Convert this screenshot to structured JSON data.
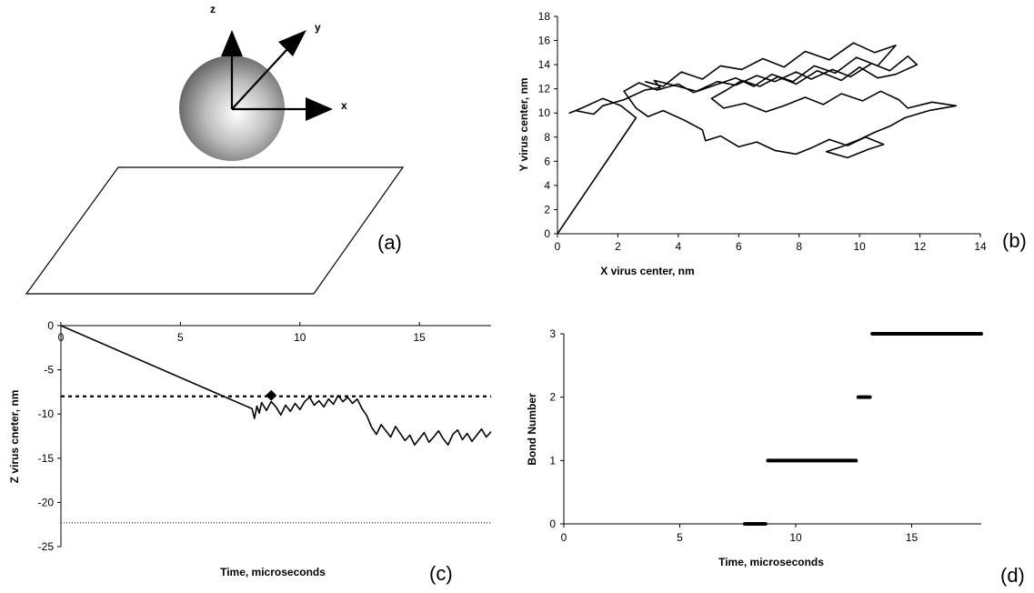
{
  "panel_labels": {
    "a": "(a)",
    "b": "(b)",
    "c": "(c)",
    "d": "(d)"
  },
  "schematic": {
    "axis_z": "z",
    "axis_y": "y",
    "axis_x": "x"
  },
  "chart_data": [
    {
      "panel": "b",
      "type": "line",
      "xlabel": "X virus center, nm",
      "ylabel": "Y virus center, nm",
      "xlim": [
        0,
        14
      ],
      "ylim": [
        0,
        18
      ],
      "xticks": [
        "0",
        "2",
        "4",
        "6",
        "8",
        "10",
        "12",
        "14"
      ],
      "yticks": [
        "0",
        "2",
        "4",
        "6",
        "8",
        "10",
        "12",
        "14",
        "16",
        "18"
      ],
      "grid": false,
      "series": [
        {
          "x": [
            0,
            2.6,
            2.1,
            1.5,
            0.8,
            0.4,
            0.6,
            1.2,
            1.5,
            2.2,
            2.9,
            3.4,
            3.2,
            4.0,
            4.6,
            5.3,
            5.9,
            6.6,
            7.2,
            7.9,
            8.4,
            9.1,
            9.7,
            10.4,
            11.0,
            11.6,
            11.9,
            11.2,
            10.6,
            10.0,
            9.4,
            8.6,
            7.9,
            7.3,
            6.7,
            6.1,
            5.6,
            5.1,
            5.5,
            6.2,
            6.9,
            7.5,
            8.2,
            8.8,
            9.4,
            10.1,
            10.7,
            11.3,
            11.6,
            12.4,
            13.2,
            12.3,
            11.5,
            11.0,
            10.5,
            10.0,
            9.4,
            8.9,
            9.6,
            10.3,
            10.8,
            10.2,
            9.6,
            9.0,
            8.4,
            7.9,
            7.2,
            6.6,
            6.0,
            5.4,
            4.9,
            4.8,
            4.2,
            3.5,
            3.0,
            2.6,
            2.2,
            2.7,
            3.3,
            4.0,
            4.5,
            5.2,
            5.9,
            6.5,
            7.1,
            7.8,
            8.5,
            9.2,
            9.9,
            10.6,
            11.2,
            10.5,
            9.8,
            9.0,
            8.2,
            7.5,
            6.8,
            6.1,
            5.4,
            4.8,
            4.1,
            3.5,
            2.9
          ],
          "y": [
            0,
            9.6,
            10.6,
            11.2,
            10.4,
            10.0,
            10.2,
            9.9,
            10.6,
            11.1,
            11.9,
            12.1,
            12.7,
            12.2,
            11.8,
            12.6,
            12.3,
            13.1,
            12.6,
            13.4,
            12.8,
            13.6,
            13.0,
            14.1,
            13.5,
            14.7,
            14.0,
            13.2,
            12.9,
            13.8,
            12.7,
            13.5,
            12.4,
            13.0,
            12.2,
            12.7,
            11.9,
            11.2,
            10.4,
            10.8,
            10.1,
            10.6,
            11.3,
            10.7,
            11.6,
            11.0,
            11.8,
            11.1,
            10.4,
            10.9,
            10.6,
            10.2,
            9.6,
            8.9,
            8.4,
            7.8,
            7.2,
            6.8,
            6.3,
            7.0,
            7.4,
            8.0,
            7.3,
            7.8,
            7.1,
            6.6,
            6.9,
            7.6,
            7.2,
            8.1,
            7.7,
            8.6,
            9.4,
            10.2,
            9.7,
            10.4,
            11.8,
            12.5,
            11.9,
            12.4,
            11.7,
            12.3,
            12.9,
            12.2,
            13.2,
            12.6,
            13.9,
            13.3,
            14.6,
            13.9,
            15.6,
            15.0,
            15.8,
            14.4,
            15.1,
            13.8,
            14.5,
            13.6,
            13.9,
            12.8,
            13.4,
            12.2,
            12.6
          ]
        }
      ]
    },
    {
      "panel": "c",
      "type": "line",
      "xlabel": "Time, microseconds",
      "ylabel": "Z virus cneter, nm",
      "xlim": [
        0,
        18
      ],
      "ylim": [
        -25,
        0
      ],
      "xticks": [
        "0",
        "5",
        "10",
        "15"
      ],
      "yticks": [
        "0",
        "-5",
        "-10",
        "-15",
        "-20",
        "-25"
      ],
      "grid": false,
      "reference_lines": [
        {
          "y": -8,
          "style": "dashed"
        },
        {
          "y": -22.3,
          "style": "dotted"
        }
      ],
      "marker": {
        "x": 8.8,
        "y": -7.9,
        "shape": "diamond"
      },
      "series": [
        {
          "x": [
            0,
            8.0,
            8.1,
            8.2,
            8.3,
            8.4,
            8.6,
            8.8,
            9.0,
            9.2,
            9.4,
            9.6,
            9.8,
            10.0,
            10.2,
            10.4,
            10.6,
            10.8,
            11.0,
            11.2,
            11.4,
            11.6,
            11.8,
            12.0,
            12.2,
            12.4,
            12.6,
            12.8,
            13.0,
            13.2,
            13.4,
            13.6,
            13.8,
            14.0,
            14.2,
            14.4,
            14.6,
            14.8,
            15.0,
            15.2,
            15.4,
            15.6,
            15.8,
            16.0,
            16.2,
            16.4,
            16.6,
            16.8,
            17.0,
            17.2,
            17.4,
            17.6,
            17.8,
            18.0
          ],
          "y": [
            0,
            -9.4,
            -10.5,
            -9.1,
            -9.9,
            -8.7,
            -9.6,
            -8.6,
            -9.2,
            -10.1,
            -9.0,
            -9.7,
            -8.8,
            -9.5,
            -8.6,
            -8.1,
            -9.0,
            -8.5,
            -9.2,
            -8.3,
            -8.9,
            -7.9,
            -8.6,
            -8.1,
            -8.8,
            -8.3,
            -9.4,
            -10.2,
            -11.5,
            -12.3,
            -11.2,
            -11.9,
            -12.6,
            -11.4,
            -12.2,
            -13.0,
            -12.4,
            -13.5,
            -12.8,
            -12.1,
            -13.2,
            -12.6,
            -11.9,
            -12.8,
            -13.5,
            -12.3,
            -11.8,
            -12.9,
            -12.2,
            -13.1,
            -12.4,
            -11.7,
            -12.6,
            -12.0
          ]
        }
      ]
    },
    {
      "panel": "d",
      "type": "line",
      "xlabel": "Time, microseconds",
      "ylabel": "Bond Number",
      "xlim": [
        0,
        18
      ],
      "ylim": [
        0,
        3
      ],
      "xticks": [
        "0",
        "5",
        "10",
        "15"
      ],
      "yticks": [
        "0",
        "1",
        "2",
        "3"
      ],
      "grid": false,
      "series": [
        {
          "segments": [
            {
              "value": 0,
              "x_start": 7.8,
              "x_end": 8.7
            },
            {
              "value": 1,
              "x_start": 8.8,
              "x_end": 12.6
            },
            {
              "value": 2,
              "x_start": 12.7,
              "x_end": 13.2
            },
            {
              "value": 3,
              "x_start": 13.3,
              "x_end": 18.0
            }
          ]
        }
      ]
    }
  ]
}
